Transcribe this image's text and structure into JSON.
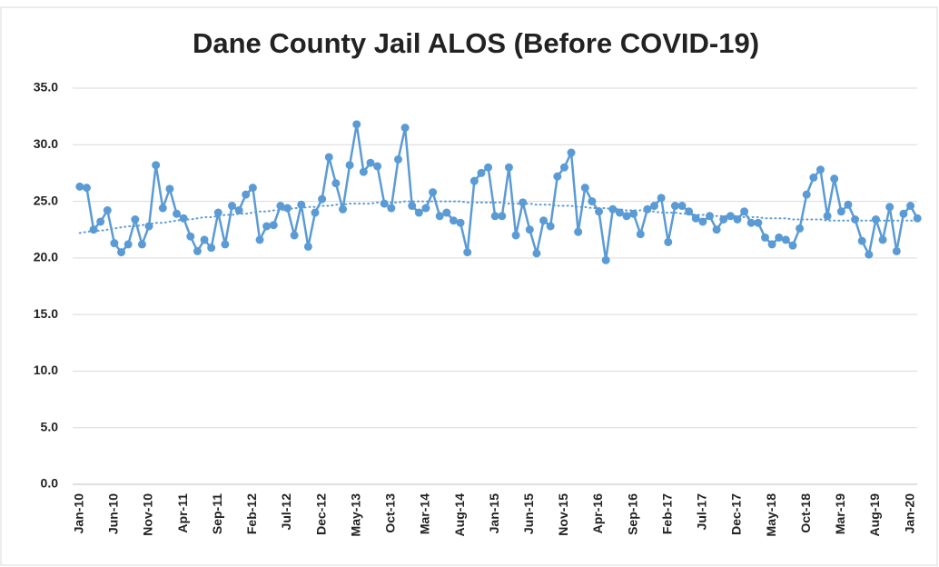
{
  "chart_data": {
    "type": "line",
    "title": "Dane County Jail ALOS (Before COVID-19)",
    "categories": [
      "Jan-10",
      null,
      null,
      null,
      null,
      "Jun-10",
      null,
      null,
      null,
      null,
      "Nov-10",
      null,
      null,
      null,
      null,
      "Apr-11",
      null,
      null,
      null,
      null,
      "Sep-11",
      null,
      null,
      null,
      null,
      "Feb-12",
      null,
      null,
      null,
      null,
      "Jul-12",
      null,
      null,
      null,
      null,
      "Dec-12",
      null,
      null,
      null,
      null,
      "May-13",
      null,
      null,
      null,
      null,
      "Oct-13",
      null,
      null,
      null,
      null,
      "Mar-14",
      null,
      null,
      null,
      null,
      "Aug-14",
      null,
      null,
      null,
      null,
      "Jan-15",
      null,
      null,
      null,
      null,
      "Jun-15",
      null,
      null,
      null,
      null,
      "Nov-15",
      null,
      null,
      null,
      null,
      "Apr-16",
      null,
      null,
      null,
      null,
      "Sep-16",
      null,
      null,
      null,
      null,
      "Feb-17",
      null,
      null,
      null,
      null,
      "Jul-17",
      null,
      null,
      null,
      null,
      "Dec-17",
      null,
      null,
      null,
      null,
      "May-18",
      null,
      null,
      null,
      null,
      "Oct-18",
      null,
      null,
      null,
      null,
      "Mar-19",
      null,
      null,
      null,
      null,
      "Aug-19",
      null,
      null,
      null,
      null,
      "Jan-20",
      null
    ],
    "series": [
      {
        "color": "#5b9bd5",
        "markers": true,
        "style": "solid",
        "values": [
          26.3,
          26.2,
          22.5,
          23.2,
          24.2,
          21.3,
          20.5,
          21.2,
          23.4,
          21.2,
          22.8,
          28.2,
          24.4,
          26.1,
          23.9,
          23.5,
          21.9,
          20.6,
          21.6,
          20.9,
          24.0,
          21.2,
          24.6,
          24.2,
          25.6,
          26.2,
          21.6,
          22.8,
          22.9,
          24.6,
          24.4,
          22.0,
          24.7,
          21.0,
          24.0,
          25.2,
          28.9,
          26.6,
          24.3,
          28.2,
          31.8,
          27.6,
          28.4,
          28.1,
          24.8,
          24.4,
          28.7,
          31.5,
          24.6,
          24.0,
          24.4,
          25.8,
          23.7,
          24.0,
          23.3,
          23.1,
          20.5,
          26.8,
          27.5,
          28.0,
          23.7,
          23.7,
          28.0,
          22.0,
          24.9,
          22.5,
          20.4,
          23.3,
          22.8,
          27.2,
          28.0,
          29.3,
          22.3,
          26.2,
          25.0,
          24.1,
          19.8,
          24.3,
          24.0,
          23.7,
          23.9,
          22.1,
          24.3,
          24.6,
          25.3,
          21.4,
          24.6,
          24.6,
          24.1,
          23.5,
          23.2,
          23.7,
          22.5,
          23.4,
          23.7,
          23.4,
          24.1,
          23.1,
          23.1,
          21.8,
          21.2,
          21.8,
          21.6,
          21.1,
          22.6,
          25.6,
          27.1,
          27.8,
          23.7,
          27.0,
          24.1,
          24.7,
          23.4,
          21.5,
          20.3,
          23.4,
          21.6,
          24.5,
          20.6,
          23.9,
          24.6,
          23.5
        ]
      },
      {
        "color": "#5b9bd5",
        "markers": false,
        "style": "dotted",
        "values": [
          22.2,
          22.3,
          22.4,
          22.4,
          22.5,
          22.6,
          22.7,
          22.8,
          22.8,
          22.9,
          23.0,
          23.1,
          23.1,
          23.2,
          23.3,
          23.4,
          23.4,
          23.5,
          23.6,
          23.6,
          23.7,
          23.8,
          23.8,
          23.9,
          23.9,
          24.0,
          24.1,
          24.1,
          24.2,
          24.2,
          24.3,
          24.4,
          24.4,
          24.5,
          24.5,
          24.6,
          24.6,
          24.7,
          24.7,
          24.8,
          24.8,
          24.8,
          24.8,
          24.9,
          24.9,
          24.9,
          24.9,
          25.0,
          25.0,
          25.0,
          25.0,
          25.0,
          25.0,
          25.0,
          25.0,
          25.0,
          24.9,
          24.9,
          24.9,
          24.9,
          24.9,
          24.9,
          24.8,
          24.8,
          24.8,
          24.8,
          24.7,
          24.7,
          24.7,
          24.6,
          24.6,
          24.6,
          24.5,
          24.5,
          24.4,
          24.4,
          24.4,
          24.3,
          24.3,
          24.2,
          24.2,
          24.2,
          24.1,
          24.1,
          24.0,
          24.0,
          24.0,
          23.9,
          23.9,
          23.8,
          23.8,
          23.8,
          23.7,
          23.7,
          23.7,
          23.7,
          23.6,
          23.6,
          23.6,
          23.5,
          23.5,
          23.5,
          23.5,
          23.4,
          23.4,
          23.4,
          23.4,
          23.4,
          23.3,
          23.3,
          23.3,
          23.3,
          23.3,
          23.3,
          23.3,
          23.3,
          23.3,
          23.3,
          23.3,
          23.3,
          23.3,
          23.3
        ]
      }
    ],
    "ylim": [
      0,
      35
    ],
    "yticks": [
      {
        "value": 0,
        "label": "0.0"
      },
      {
        "value": 5,
        "label": "5.0"
      },
      {
        "value": 10,
        "label": "10.0"
      },
      {
        "value": 15,
        "label": "15.0"
      },
      {
        "value": 20,
        "label": "20.0"
      },
      {
        "value": 25,
        "label": "25.0"
      },
      {
        "value": 30,
        "label": "30.0"
      },
      {
        "value": 35,
        "label": "35.0"
      }
    ],
    "grid": true
  }
}
